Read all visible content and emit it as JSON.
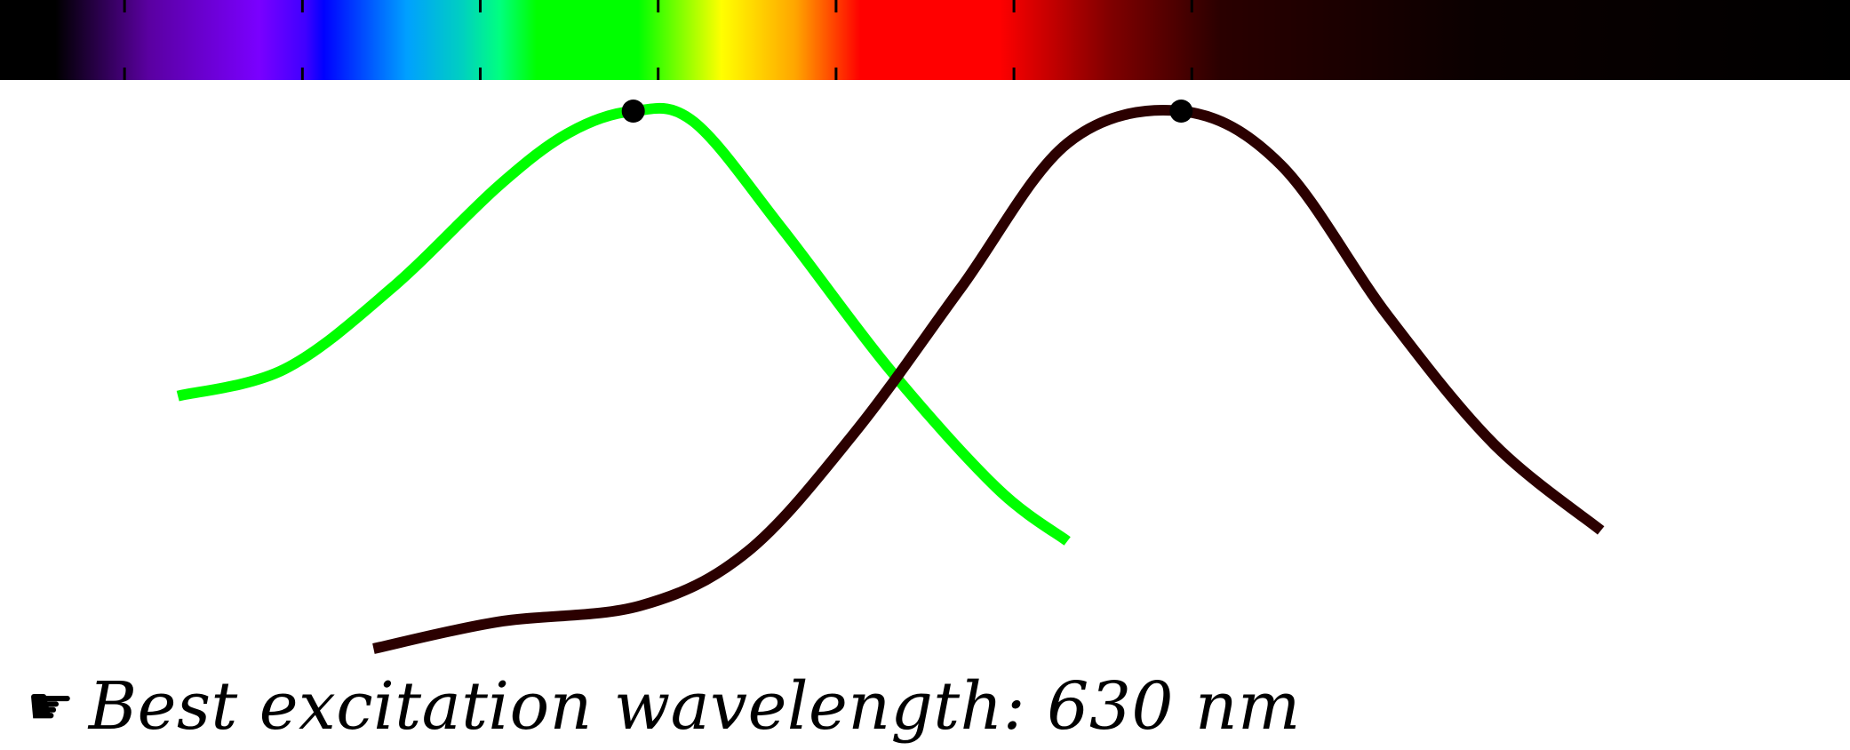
{
  "chart_data": {
    "type": "line",
    "title": "",
    "xlabel": "",
    "ylabel": "",
    "xlim": [
      340,
      860
    ],
    "ylim": [
      0,
      1
    ],
    "grid": false,
    "legend": "none",
    "spectrum_ticks": [
      375,
      425,
      475,
      525,
      575,
      625,
      675
    ],
    "series": [
      {
        "color": "#00ff00",
        "peak_x": 518,
        "x": [
          390,
          420,
          450,
          480,
          500,
          518,
          535,
          560,
          590,
          620,
          640
        ],
        "y": [
          0.47,
          0.52,
          0.67,
          0.86,
          0.96,
          1.0,
          0.98,
          0.78,
          0.52,
          0.3,
          0.2
        ]
      },
      {
        "color": "#2b0000",
        "peak_x": 672,
        "x": [
          445,
          480,
          520,
          550,
          580,
          610,
          640,
          672,
          700,
          730,
          760,
          790
        ],
        "y": [
          0.0,
          0.05,
          0.08,
          0.18,
          0.4,
          0.67,
          0.94,
          1.0,
          0.9,
          0.62,
          0.38,
          0.22
        ]
      }
    ]
  },
  "caption": {
    "icon": "pointing-hand-icon",
    "icon_glyph": "☛",
    "text": "Best excitation wavelength: 630 nm"
  }
}
